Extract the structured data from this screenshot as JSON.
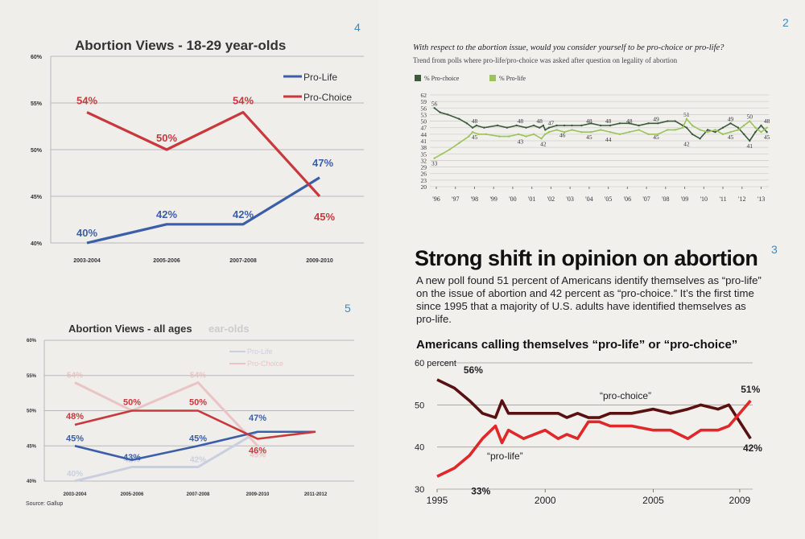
{
  "page_numbers": {
    "c1": "4",
    "c2": "2",
    "c3": "3",
    "c4": "5"
  },
  "colors": {
    "pro_life_blue": "#3b5ea8",
    "pro_choice_red": "#c8383d",
    "pro_choice_dark": "#5a1010",
    "pro_life_red": "#e0282a",
    "prochoice_green_dark": "#3d5a3d",
    "prolife_green_light": "#9ac45a",
    "page_number_blue": "#3a8bc4"
  },
  "text3": {
    "heading": "Strong shift in opinion on abortion",
    "paragraph": "A new poll found 51 percent of Americans identify themselves as “pro-life” on the issue of abortion and 42 percent as “pro-choice.” It’s the first time since 1995 that a majority of U.S. adults have identified themselves as pro-life.",
    "subheading": "Americans calling themselves “pro-life” or “pro-choice”"
  },
  "text2": {
    "title": "With respect to the abortion issue, would you consider yourself to be pro-choice or pro-life?",
    "subtitle": "Trend from polls where pro-life/pro-choice was asked after question on legality of abortion"
  },
  "chart_data": [
    {
      "id": "c1",
      "type": "line",
      "title": "Abortion Views - 18-29 year-olds",
      "categories": [
        "2003-2004",
        "2005-2006",
        "2007-2008",
        "2009-2010"
      ],
      "yticks": [
        "40%",
        "45%",
        "50%",
        "55%",
        "60%"
      ],
      "ylim": [
        40,
        60
      ],
      "series": [
        {
          "name": "Pro-Life",
          "values": [
            40,
            42,
            42,
            47
          ],
          "labels": [
            "40%",
            "42%",
            "42%",
            "47%"
          ],
          "color": "#3b5ea8"
        },
        {
          "name": "Pro-Choice",
          "values": [
            54,
            50,
            54,
            45
          ],
          "labels": [
            "54%",
            "50%",
            "54%",
            "45%"
          ],
          "color": "#c8383d"
        }
      ],
      "legend": "top-right",
      "grid": true
    },
    {
      "id": "c4",
      "type": "line",
      "title": "Abortion Views - all ages",
      "ghost_title_fragment": "ear-olds",
      "source": "Source: Gallup",
      "categories": [
        "2003-2004",
        "2005-2006",
        "2007-2008",
        "2009-2010",
        "2011-2012"
      ],
      "yticks": [
        "40%",
        "45%",
        "50%",
        "55%",
        "60%"
      ],
      "ylim": [
        40,
        60
      ],
      "series": [
        {
          "name": "Pro-Life",
          "values": [
            45,
            43,
            45,
            47,
            47
          ],
          "labels": [
            "45%",
            "43%",
            "45%",
            "47%",
            ""
          ],
          "color": "#3b5ea8"
        },
        {
          "name": "Pro-Choice",
          "values": [
            48,
            50,
            50,
            46,
            47
          ],
          "labels": [
            "48%",
            "50%",
            "50%",
            "46%",
            ""
          ],
          "color": "#c8383d"
        }
      ],
      "ghost_series": [
        {
          "name": "Pro-Life",
          "values": [
            40,
            42,
            42,
            47
          ],
          "labels": [
            "40%",
            "42%",
            "42%",
            ""
          ]
        },
        {
          "name": "Pro-Choice",
          "values": [
            54,
            50,
            54,
            45
          ],
          "labels": [
            "54%",
            "",
            "54%",
            "45%"
          ]
        }
      ],
      "legend": "top-right",
      "grid": true
    },
    {
      "id": "c2",
      "type": "line",
      "title": "With respect to the abortion issue, would you consider yourself to be pro-choice or pro-life?",
      "subtitle": "Trend from polls where pro-life/pro-choice was asked after question on legality of abortion",
      "xlabels": [
        "'96",
        "'97",
        "'98",
        "'99",
        "'00",
        "'01",
        "'02",
        "'03",
        "'04",
        "'05",
        "'06",
        "'07",
        "'08",
        "'09",
        "'10",
        "'11",
        "'12",
        "'13"
      ],
      "xlim": [
        1996,
        2013.4
      ],
      "yticks": [
        20,
        23,
        26,
        29,
        32,
        35,
        38,
        41,
        44,
        47,
        50,
        53,
        56,
        59,
        62
      ],
      "ylim": [
        20,
        62
      ],
      "series": [
        {
          "name": "% Pro-choice",
          "color": "#3d5a3d",
          "x": [
            1995.9,
            1996.2,
            1996.6,
            1997.2,
            1997.6,
            1997.9,
            1998.1,
            1998.5,
            1999.2,
            1999.7,
            2000.2,
            2000.7,
            2001.1,
            2001.4,
            2001.6,
            2001.7,
            2001.9,
            2002.3,
            2002.7,
            2003.1,
            2003.6,
            2004.1,
            2004.6,
            2005.1,
            2005.6,
            2006.1,
            2006.6,
            2007.1,
            2007.6,
            2008.1,
            2008.5,
            2008.9,
            2009.1,
            2009.4,
            2009.8,
            2010.2,
            2010.6,
            2011.0,
            2011.4,
            2011.8,
            2012.1,
            2012.4,
            2012.7,
            2013.0,
            2013.3
          ],
          "values": [
            56,
            54,
            53,
            51,
            49,
            47,
            48,
            47,
            48,
            47,
            48,
            47,
            48,
            47,
            48,
            46,
            47,
            48,
            48,
            48,
            48,
            49,
            48,
            48,
            49,
            49,
            48,
            49,
            49,
            50,
            50,
            48,
            47,
            44,
            42,
            46,
            45,
            47,
            49,
            47,
            44,
            41,
            45,
            48,
            45
          ]
        },
        {
          "name": "% Pro-life",
          "color": "#9ac45a",
          "x": [
            1995.9,
            1996.3,
            1996.7,
            1997.2,
            1997.7,
            1997.9,
            1998.2,
            1998.6,
            1999.3,
            1999.8,
            2000.3,
            2000.7,
            2001.1,
            2001.5,
            2001.7,
            2001.9,
            2002.3,
            2002.7,
            2003.1,
            2003.6,
            2004.1,
            2004.6,
            2005.1,
            2005.6,
            2006.1,
            2006.6,
            2007.1,
            2007.6,
            2008.1,
            2008.5,
            2008.9,
            2009.1,
            2009.4,
            2009.8,
            2010.2,
            2010.6,
            2011.0,
            2011.4,
            2011.8,
            2012.1,
            2012.4,
            2012.7,
            2013.0,
            2013.3
          ],
          "values": [
            33,
            35,
            37,
            40,
            43,
            45,
            44,
            44,
            43,
            43,
            44,
            43,
            44,
            42,
            44,
            45,
            46,
            45,
            46,
            45,
            45,
            46,
            45,
            44,
            45,
            46,
            44,
            44,
            46,
            46,
            47,
            51,
            48,
            46,
            45,
            46,
            44,
            45,
            46,
            48,
            50,
            47,
            45,
            47
          ]
        }
      ],
      "point_labels": [
        {
          "x": 1995.9,
          "y": 56,
          "text": "56"
        },
        {
          "x": 1995.9,
          "y": 33,
          "text": "33"
        },
        {
          "x": 1998.0,
          "y": 48,
          "text": "48"
        },
        {
          "x": 1998.0,
          "y": 45,
          "text": "45"
        },
        {
          "x": 2000.4,
          "y": 48,
          "text": "48"
        },
        {
          "x": 2000.4,
          "y": 43,
          "text": "43"
        },
        {
          "x": 2001.4,
          "y": 48,
          "text": "48"
        },
        {
          "x": 2001.6,
          "y": 42,
          "text": "42"
        },
        {
          "x": 2002.0,
          "y": 47,
          "text": "47"
        },
        {
          "x": 2002.6,
          "y": 46,
          "text": "46"
        },
        {
          "x": 2004.0,
          "y": 48,
          "text": "48"
        },
        {
          "x": 2004.0,
          "y": 45,
          "text": "45"
        },
        {
          "x": 2005.0,
          "y": 48,
          "text": "48"
        },
        {
          "x": 2005.0,
          "y": 44,
          "text": "44"
        },
        {
          "x": 2006.1,
          "y": 48,
          "text": "48"
        },
        {
          "x": 2007.5,
          "y": 49,
          "text": "49"
        },
        {
          "x": 2007.5,
          "y": 45,
          "text": "45"
        },
        {
          "x": 2009.1,
          "y": 51,
          "text": "51"
        },
        {
          "x": 2009.1,
          "y": 42,
          "text": "42"
        },
        {
          "x": 2011.4,
          "y": 49,
          "text": "49"
        },
        {
          "x": 2011.4,
          "y": 45,
          "text": "45"
        },
        {
          "x": 2012.4,
          "y": 50,
          "text": "50"
        },
        {
          "x": 2012.4,
          "y": 41,
          "text": "41"
        },
        {
          "x": 2013.3,
          "y": 48,
          "text": "48"
        },
        {
          "x": 2013.3,
          "y": 45,
          "text": "45"
        }
      ],
      "legend": "top-left",
      "grid": true
    },
    {
      "id": "c3",
      "type": "line",
      "title": "Americans calling themselves “pro-life” or “pro-choice”",
      "xticks": [
        "1995",
        "2000",
        "2005",
        "2009"
      ],
      "xtick_values": [
        1995,
        2000,
        2005,
        2009
      ],
      "yticks": [
        "30",
        "40",
        "50",
        "60 percent"
      ],
      "ytick_values": [
        30,
        40,
        50,
        60
      ],
      "xlim": [
        1995,
        2009.6
      ],
      "ylim": [
        30,
        60
      ],
      "series": [
        {
          "name": "“pro-choice”",
          "color": "#5a1010",
          "x": [
            1995,
            1995.8,
            1996.5,
            1997.1,
            1997.7,
            1998.0,
            1998.3,
            1999,
            2000,
            2000.6,
            2001.0,
            2001.5,
            2002.0,
            2002.5,
            2003,
            2004,
            2005,
            2005.8,
            2006.6,
            2007.2,
            2008,
            2008.5,
            2009.0,
            2009.5
          ],
          "values": [
            56,
            54,
            51,
            48,
            47,
            51,
            48,
            48,
            48,
            48,
            47,
            48,
            47,
            47,
            48,
            48,
            49,
            48,
            49,
            50,
            49,
            50,
            46,
            42
          ]
        },
        {
          "name": "“pro-life”",
          "color": "#e0282a",
          "x": [
            1995,
            1995.8,
            1996.5,
            1997.1,
            1997.7,
            1998.0,
            1998.3,
            1999,
            2000,
            2000.6,
            2001.0,
            2001.5,
            2002.0,
            2002.5,
            2003,
            2004,
            2005,
            2005.8,
            2006.6,
            2007.2,
            2008,
            2008.5,
            2009.0,
            2009.5
          ],
          "values": [
            33,
            35,
            38,
            42,
            45,
            41,
            44,
            42,
            44,
            42,
            43,
            42,
            46,
            46,
            45,
            45,
            44,
            44,
            42,
            44,
            44,
            45,
            48,
            51
          ]
        }
      ],
      "annotations": [
        {
          "x": 1996.0,
          "y": 56,
          "text": "56%"
        },
        {
          "x": 1996.2,
          "y": 33,
          "text": "33%"
        },
        {
          "x": 2009.2,
          "y": 51,
          "text": "51%"
        },
        {
          "x": 2009.3,
          "y": 42,
          "text": "42%"
        }
      ],
      "grid": true
    }
  ]
}
